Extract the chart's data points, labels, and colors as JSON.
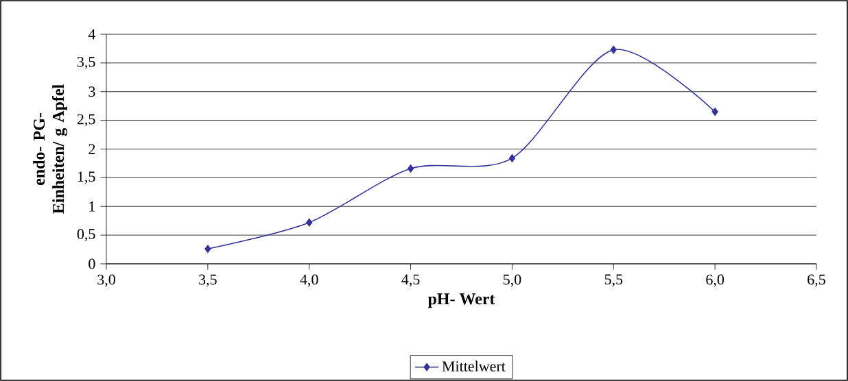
{
  "chart_data": {
    "type": "line",
    "xlabel": "pH- Wert",
    "ylabel": "endo- PG- Einheiten/ g Apfel",
    "x": [
      3.5,
      4.0,
      4.5,
      5.0,
      5.5,
      6.0
    ],
    "series": [
      {
        "name": "Mittelwert",
        "color": "#333399",
        "values": [
          0.26,
          0.72,
          1.66,
          1.84,
          3.73,
          2.65
        ]
      }
    ],
    "xlim": [
      3.0,
      6.5
    ],
    "xticks": [
      {
        "value": 3.0,
        "label": "3,0"
      },
      {
        "value": 3.5,
        "label": "3,5"
      },
      {
        "value": 4.0,
        "label": "4,0"
      },
      {
        "value": 4.5,
        "label": "4,5"
      },
      {
        "value": 5.0,
        "label": "5,0"
      },
      {
        "value": 5.5,
        "label": "5,5"
      },
      {
        "value": 6.0,
        "label": "6,0"
      },
      {
        "value": 6.5,
        "label": "6,5"
      }
    ],
    "ylim": [
      0,
      4
    ],
    "yticks": [
      0,
      {
        "value": 0.5,
        "label": "0,5"
      },
      1,
      {
        "value": 1.5,
        "label": "1,5"
      },
      2,
      {
        "value": 2.5,
        "label": "2,5"
      },
      3,
      {
        "value": 3.5,
        "label": "3,5"
      },
      4
    ],
    "grid": "y",
    "legend": "bottom",
    "marker": "diamond",
    "line_style": "solid"
  }
}
